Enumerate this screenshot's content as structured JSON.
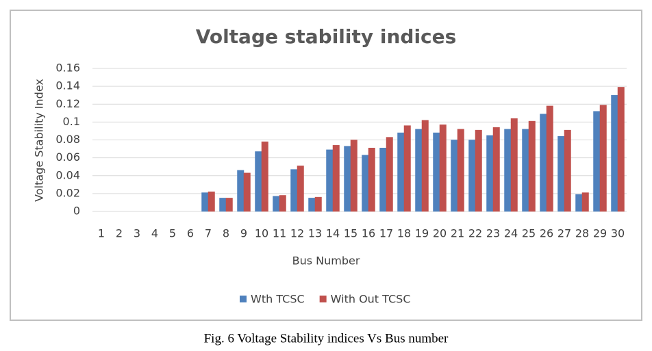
{
  "chart_data": {
    "type": "bar",
    "title": "Voltage stability indices",
    "x_label": "Bus Number",
    "y_label": "Voltage Stability Index",
    "caption": "Fig. 6 Voltage Stability indices Vs Bus number",
    "categories": [
      "1",
      "2",
      "3",
      "4",
      "5",
      "6",
      "7",
      "8",
      "9",
      "10",
      "11",
      "12",
      "13",
      "14",
      "15",
      "16",
      "17",
      "18",
      "19",
      "20",
      "21",
      "22",
      "23",
      "24",
      "25",
      "26",
      "27",
      "28",
      "29",
      "30"
    ],
    "series": [
      {
        "name": "Wth TCSC",
        "color": "#4f81bd",
        "values": [
          0,
          0,
          0,
          0,
          0,
          0,
          0.021,
          0.015,
          0.046,
          0.067,
          0.017,
          0.047,
          0.015,
          0.069,
          0.073,
          0.063,
          0.071,
          0.088,
          0.092,
          0.088,
          0.08,
          0.08,
          0.085,
          0.092,
          0.092,
          0.109,
          0.084,
          0.019,
          0.112,
          0.13
        ]
      },
      {
        "name": "With Out TCSC",
        "color": "#c0504d",
        "values": [
          0,
          0,
          0,
          0,
          0,
          0,
          0.022,
          0.015,
          0.043,
          0.078,
          0.018,
          0.051,
          0.016,
          0.074,
          0.08,
          0.071,
          0.083,
          0.096,
          0.102,
          0.097,
          0.092,
          0.091,
          0.094,
          0.104,
          0.101,
          0.118,
          0.091,
          0.021,
          0.119,
          0.139
        ]
      }
    ],
    "ylim": [
      0,
      0.16
    ],
    "yticks": [
      0,
      0.02,
      0.04,
      0.06,
      0.08,
      0.1,
      0.12,
      0.14,
      0.16
    ],
    "grid": true,
    "legend": "bottom"
  }
}
